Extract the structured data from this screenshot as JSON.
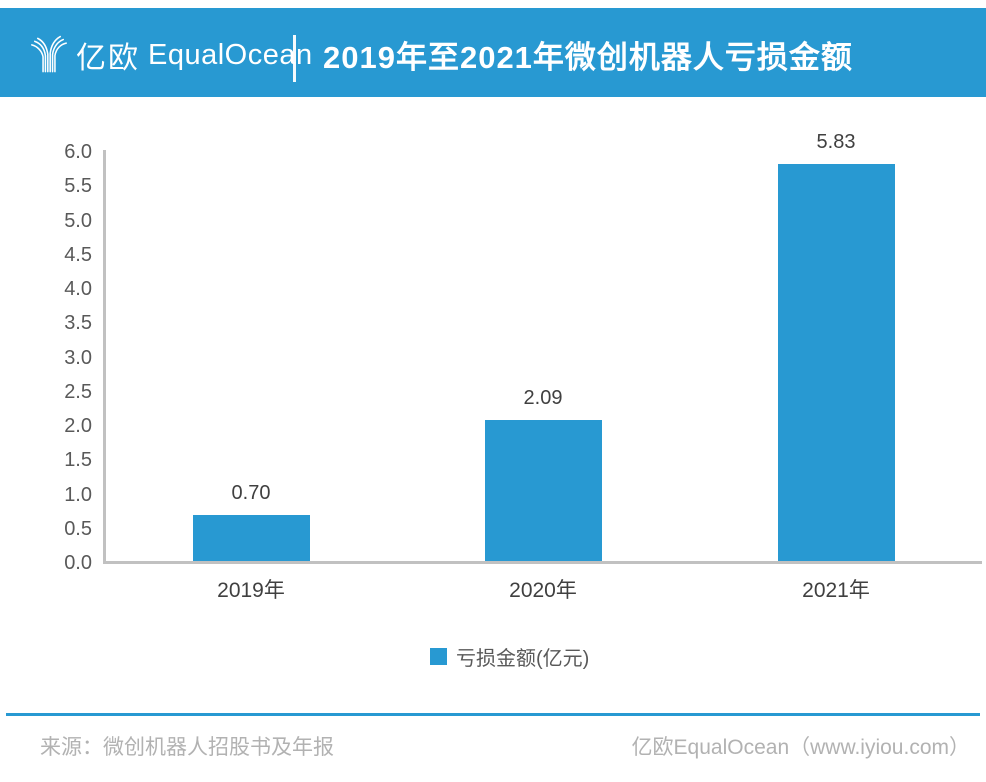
{
  "header": {
    "brand_zh": "亿欧",
    "brand_en": "EqualOcean",
    "title": "2019年至2021年微创机器人亏损金额",
    "bg_color": "#2899D2",
    "text_color": "#FFFFFF"
  },
  "chart_data": {
    "type": "bar",
    "title": "2019年至2021年微创机器人亏损金额",
    "categories": [
      "2019年",
      "2020年",
      "2021年"
    ],
    "series": [
      {
        "name": "亏损金额(亿元)",
        "values": [
          0.7,
          2.09,
          5.83
        ]
      }
    ],
    "value_labels": [
      "0.70",
      "2.09",
      "5.83"
    ],
    "xlabel": "",
    "ylabel": "",
    "ylim": [
      0.0,
      6.0
    ],
    "ytick_interval": 0.5,
    "ytick_labels": [
      "0.0",
      "0.5",
      "1.0",
      "1.5",
      "2.0",
      "2.5",
      "3.0",
      "3.5",
      "4.0",
      "4.5",
      "5.0",
      "5.5",
      "6.0"
    ],
    "grid": false,
    "legend_position": "bottom",
    "legend_label": "亏损金额(亿元)",
    "bar_color": "#2899D2",
    "axis_color": "#C1C1C1",
    "tick_label_color": "#595959",
    "value_label_color": "#404040"
  },
  "footer": {
    "source": "来源：微创机器人招股书及年报",
    "credit": "亿欧EqualOcean（www.iyiou.com）",
    "rule_color": "#2899D2",
    "text_color": "#B2B2B2"
  }
}
